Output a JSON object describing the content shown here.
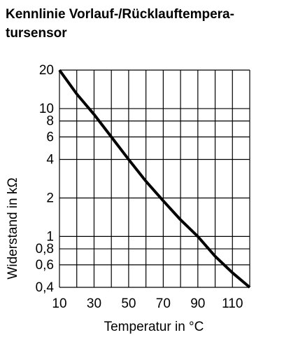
{
  "chart_data": {
    "type": "line",
    "title_lines": [
      "Kennlinie Vorlauf-/Rücklauftempera-",
      "tursensor"
    ],
    "x_label": "Temperatur in °C",
    "y_label": "Widerstand in kΩ",
    "x": [
      10,
      20,
      30,
      40,
      50,
      60,
      70,
      80,
      90,
      100,
      110,
      120
    ],
    "series": [
      {
        "color": "#000000",
        "values": [
          20,
          13,
          9,
          6,
          4,
          2.7,
          1.9,
          1.35,
          1.0,
          0.7,
          0.52,
          0.4
        ]
      }
    ],
    "xlim": [
      10,
      120
    ],
    "xticks": [
      10,
      30,
      50,
      70,
      90,
      110
    ],
    "xgrid": [
      20,
      40,
      60,
      80,
      100,
      120
    ],
    "ylim": [
      0.4,
      20
    ],
    "log_y": true,
    "yticks": [
      20,
      10,
      8,
      6,
      4,
      2,
      1,
      {
        "value": 0.8,
        "label": "0,8"
      },
      {
        "value": 0.6,
        "label": "0,6"
      },
      {
        "value": 0.4,
        "label": "0,4"
      }
    ],
    "grid": true
  }
}
